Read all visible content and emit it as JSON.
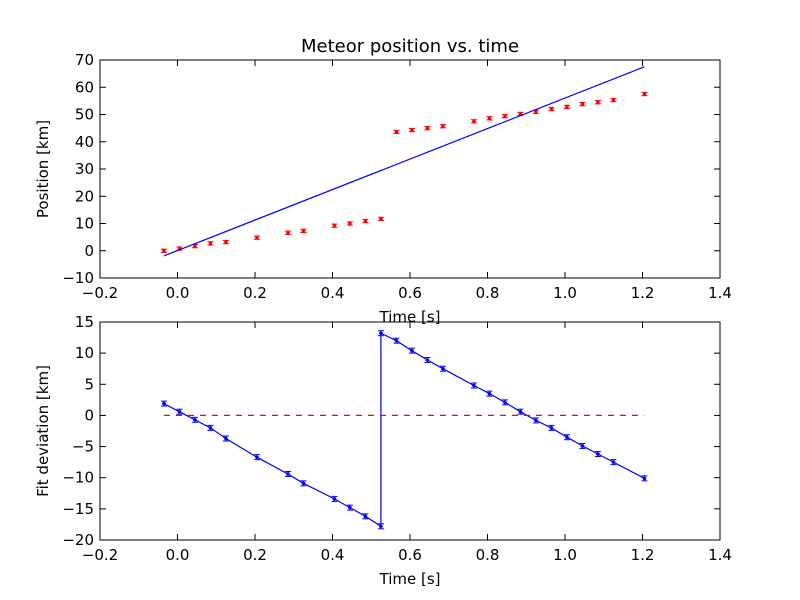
{
  "chart_data": [
    {
      "type": "scatter",
      "title": "Meteor position vs. time",
      "xlabel": "Time [s]",
      "ylabel": "Position [km]",
      "xlim": [
        -0.2,
        1.4
      ],
      "ylim": [
        -10,
        70
      ],
      "xticks": [
        "−0.2",
        "0.0",
        "0.2",
        "0.4",
        "0.6",
        "0.8",
        "1.0",
        "1.2",
        "1.4"
      ],
      "yticks": [
        "−10",
        "0",
        "10",
        "20",
        "30",
        "40",
        "50",
        "60",
        "70"
      ],
      "grid": false,
      "series": [
        {
          "style": "points-with-errorbars",
          "color": "#ff0000",
          "x": [
            -0.035,
            0.005,
            0.045,
            0.085,
            0.125,
            0.205,
            0.285,
            0.325,
            0.405,
            0.445,
            0.485,
            0.525,
            0.565,
            0.605,
            0.645,
            0.685,
            0.765,
            0.805,
            0.845,
            0.885,
            0.925,
            0.965,
            1.005,
            1.045,
            1.085,
            1.125,
            1.205
          ],
          "y": [
            0.0,
            0.8,
            1.7,
            2.7,
            3.2,
            4.8,
            6.6,
            7.3,
            9.2,
            10.0,
            10.9,
            11.7,
            43.6,
            44.3,
            45.0,
            45.7,
            47.5,
            48.6,
            49.4,
            50.2,
            51.0,
            52.0,
            52.8,
            53.8,
            54.5,
            55.3,
            57.5
          ],
          "yerr": 0.6
        },
        {
          "style": "line",
          "color": "#0000ff",
          "x": [
            -0.035,
            1.205
          ],
          "y": [
            -1.9,
            67.5
          ]
        }
      ]
    },
    {
      "type": "line",
      "title": "",
      "xlabel": "Time [s]",
      "ylabel": "Fit deviation [km]",
      "xlim": [
        -0.2,
        1.4
      ],
      "ylim": [
        -20,
        15
      ],
      "xticks": [
        "−0.2",
        "0.0",
        "0.2",
        "0.4",
        "0.6",
        "0.8",
        "1.0",
        "1.2",
        "1.4"
      ],
      "yticks": [
        "−20",
        "−15",
        "−10",
        "−5",
        "0",
        "5",
        "10",
        "15"
      ],
      "grid": false,
      "series": [
        {
          "style": "line-with-errorbars",
          "color": "#0000ff",
          "x": [
            -0.035,
            0.005,
            0.045,
            0.085,
            0.125,
            0.205,
            0.285,
            0.325,
            0.405,
            0.445,
            0.485,
            0.525,
            0.525,
            0.565,
            0.605,
            0.645,
            0.685,
            0.765,
            0.805,
            0.845,
            0.885,
            0.925,
            0.965,
            1.005,
            1.045,
            1.085,
            1.125,
            1.205
          ],
          "y": [
            1.9,
            0.6,
            -0.7,
            -2.0,
            -3.7,
            -6.7,
            -9.4,
            -10.9,
            -13.4,
            -14.8,
            -16.2,
            -17.8,
            13.2,
            12.0,
            10.4,
            8.9,
            7.5,
            4.8,
            3.5,
            2.1,
            0.6,
            -0.8,
            -2.0,
            -3.5,
            -4.9,
            -6.2,
            -7.5,
            -10.1
          ],
          "yerr": 0.4
        },
        {
          "style": "dashed-line",
          "color": "#ff0000",
          "x": [
            -0.035,
            1.205
          ],
          "y": [
            0,
            0
          ]
        }
      ]
    }
  ]
}
